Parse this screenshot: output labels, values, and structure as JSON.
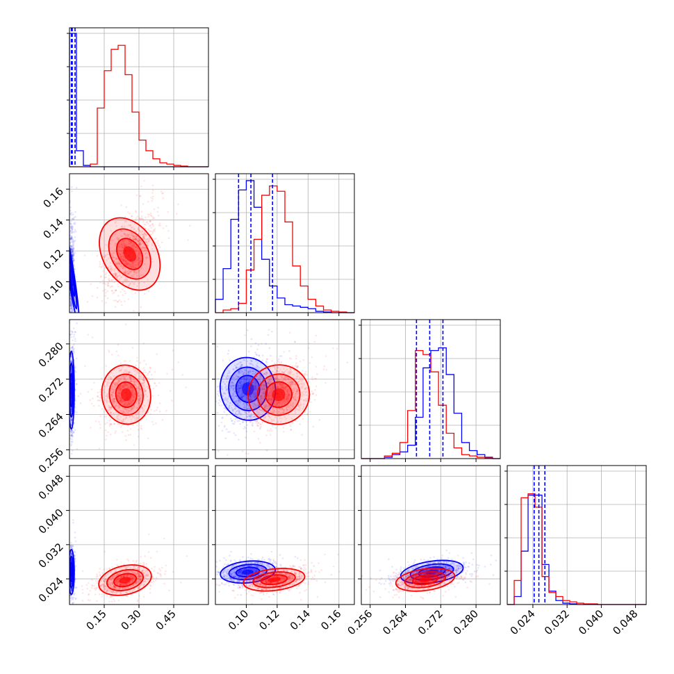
{
  "chart_data": {
    "type": "corner",
    "title": "",
    "grid": true,
    "series": [
      {
        "name": "",
        "color": "#0000ff"
      },
      {
        "name": "",
        "color": "#ff0000"
      }
    ],
    "parameters": [
      {
        "range": [
          0.0,
          0.6
        ],
        "ticks": [
          0.15,
          0.3,
          0.45
        ],
        "tick_labels": [
          "0.15",
          "0.30",
          "0.45"
        ]
      },
      {
        "range": [
          0.08,
          0.17
        ],
        "ticks": [
          0.1,
          0.12,
          0.14,
          0.16
        ],
        "tick_labels": [
          "0.10",
          "0.12",
          "0.14",
          "0.16"
        ]
      },
      {
        "range": [
          0.254,
          0.2855
        ],
        "ticks": [
          0.256,
          0.264,
          0.272,
          0.28
        ],
        "tick_labels": [
          "0.256",
          "0.264",
          "0.272",
          "0.280"
        ]
      },
      {
        "range": [
          0.018,
          0.0505
        ],
        "ticks": [
          0.024,
          0.032,
          0.04,
          0.048
        ],
        "tick_labels": [
          "0.024",
          "0.032",
          "0.040",
          "0.048"
        ]
      }
    ],
    "marginals": [
      {
        "quantiles": {
          "#0000ff": [
            0.008,
            0.012,
            0.024
          ]
        },
        "histograms": [
          {
            "color": "#0000ff",
            "counts": [
              1.0,
              0.12,
              0.01,
              0,
              0,
              0,
              0,
              0,
              0,
              0,
              0,
              0,
              0,
              0,
              0,
              0,
              0,
              0,
              0,
              0
            ]
          },
          {
            "color": "#ff0000",
            "counts": [
              0,
              0,
              0,
              0.02,
              0.44,
              0.72,
              0.88,
              0.91,
              0.69,
              0.41,
              0.2,
              0.12,
              0.06,
              0.03,
              0.02,
              0.01,
              0.005,
              0,
              0,
              0
            ]
          }
        ]
      },
      {
        "quantiles": {
          "#0000ff": [
            0.095,
            0.103,
            0.117
          ]
        },
        "histograms": [
          {
            "color": "#0000ff",
            "counts": [
              0.1,
              0.33,
              0.7,
              0.92,
              0.99,
              0.79,
              0.4,
              0.2,
              0.11,
              0.06,
              0.05,
              0.04,
              0.03,
              0.01,
              0.005,
              0,
              0,
              0
            ]
          },
          {
            "color": "#ff0000",
            "counts": [
              0,
              0.02,
              0.03,
              0.07,
              0.32,
              0.55,
              0.88,
              0.95,
              0.91,
              0.68,
              0.35,
              0.2,
              0.1,
              0.05,
              0.02,
              0.01,
              0.005,
              0
            ]
          }
        ]
      },
      {
        "quantiles": {
          "#0000ff": [
            0.2665,
            0.2695,
            0.2725
          ]
        },
        "histograms": [
          {
            "color": "#0000ff",
            "counts": [
              0,
              0,
              0,
              0.01,
              0.03,
              0.05,
              0.1,
              0.31,
              0.68,
              0.81,
              0.83,
              0.63,
              0.34,
              0.12,
              0.06,
              0.03,
              0.01,
              0
            ]
          },
          {
            "color": "#ff0000",
            "counts": [
              0,
              0,
              0,
              0.02,
              0.04,
              0.12,
              0.36,
              0.81,
              0.78,
              0.65,
              0.4,
              0.19,
              0.08,
              0.03,
              0.02,
              0.01,
              0.005,
              0
            ]
          }
        ]
      },
      {
        "quantiles": {
          "#0000ff": [
            0.0243,
            0.0254,
            0.0268
          ]
        },
        "histograms": [
          {
            "color": "#0000ff",
            "counts": [
              0,
              0.06,
              0.4,
              0.82,
              0.82,
              0.3,
              0.1,
              0.03,
              0.01,
              0.005,
              0,
              0,
              0,
              0,
              0,
              0,
              0,
              0,
              0,
              0
            ]
          },
          {
            "color": "#ff0000",
            "counts": [
              0,
              0.18,
              0.8,
              0.83,
              0.73,
              0.21,
              0.09,
              0.06,
              0.03,
              0.02,
              0.01,
              0.005,
              0.005,
              0,
              0,
              0,
              0,
              0,
              0,
              0
            ]
          }
        ]
      }
    ],
    "joint": [
      {
        "x": 0,
        "y": 1,
        "components": [
          {
            "color": "#0000ff",
            "mean": [
              0.008,
              0.104
            ],
            "sd": [
              0.006,
              0.015
            ],
            "rho": 0.1
          },
          {
            "color": "#ff0000",
            "mean": [
              0.26,
              0.118
            ],
            "sd": [
              0.055,
              0.012
            ],
            "rho": 0.55
          }
        ]
      },
      {
        "x": 0,
        "y": 2,
        "components": [
          {
            "color": "#0000ff",
            "mean": [
              0.008,
              0.2695
            ],
            "sd": [
              0.006,
              0.0042
            ],
            "rho": 0.0
          },
          {
            "color": "#ff0000",
            "mean": [
              0.245,
              0.2685
            ],
            "sd": [
              0.05,
              0.0032
            ],
            "rho": 0.15
          }
        ]
      },
      {
        "x": 0,
        "y": 3,
        "components": [
          {
            "color": "#0000ff",
            "mean": [
              0.008,
              0.0256
            ],
            "sd": [
              0.006,
              0.0025
            ],
            "rho": 0.0
          },
          {
            "color": "#ff0000",
            "mean": [
              0.24,
              0.0237
            ],
            "sd": [
              0.055,
              0.0016
            ],
            "rho": 0.45
          }
        ]
      },
      {
        "x": 1,
        "y": 2,
        "components": [
          {
            "color": "#0000ff",
            "mean": [
              0.101,
              0.2698
            ],
            "sd": [
              0.0085,
              0.0034
            ],
            "rho": 0.2
          },
          {
            "color": "#ff0000",
            "mean": [
              0.121,
              0.2685
            ],
            "sd": [
              0.0095,
              0.0032
            ],
            "rho": 0.35
          }
        ]
      },
      {
        "x": 1,
        "y": 3,
        "components": [
          {
            "color": "#0000ff",
            "mean": [
              0.101,
              0.0256
            ],
            "sd": [
              0.0085,
              0.0012
            ],
            "rho": 0.25
          },
          {
            "color": "#ff0000",
            "mean": [
              0.118,
              0.0238
            ],
            "sd": [
              0.0095,
              0.0012
            ],
            "rho": 0.35
          }
        ]
      },
      {
        "x": 2,
        "y": 3,
        "components": [
          {
            "color": "#0000ff",
            "mean": [
              0.27,
              0.0256
            ],
            "sd": [
              0.0034,
              0.0012
            ],
            "rho": 0.45
          },
          {
            "color": "#ff0000",
            "mean": [
              0.2685,
              0.0238
            ],
            "sd": [
              0.0032,
              0.0012
            ],
            "rho": 0.4
          }
        ]
      }
    ]
  }
}
